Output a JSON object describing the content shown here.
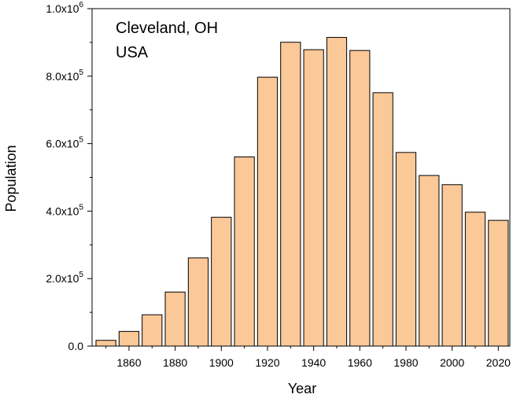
{
  "chart_data": {
    "type": "bar",
    "title": "",
    "annotation": [
      "Cleveland, OH",
      "USA"
    ],
    "xlabel": "Year",
    "ylabel": "Population",
    "categories": [
      1850,
      1860,
      1870,
      1880,
      1890,
      1900,
      1910,
      1920,
      1930,
      1940,
      1950,
      1960,
      1970,
      1980,
      1990,
      2000,
      2010,
      2020
    ],
    "values": [
      17034,
      43417,
      92829,
      160146,
      261353,
      381768,
      560663,
      796841,
      900429,
      878336,
      914808,
      876050,
      750903,
      573822,
      505616,
      478403,
      396815,
      372624
    ],
    "xlim": [
      1844,
      2025
    ],
    "ylim": [
      0,
      1000000
    ],
    "x_ticks": [
      {
        "value": 1860,
        "label": "1860"
      },
      {
        "value": 1880,
        "label": "1880"
      },
      {
        "value": 1900,
        "label": "1900"
      },
      {
        "value": 1920,
        "label": "1920"
      },
      {
        "value": 1940,
        "label": "1940"
      },
      {
        "value": 1960,
        "label": "1960"
      },
      {
        "value": 1980,
        "label": "1980"
      },
      {
        "value": 2000,
        "label": "2000"
      },
      {
        "value": 2020,
        "label": "2020"
      }
    ],
    "y_ticks": [
      {
        "value": 0,
        "mantissa": "0.0",
        "exp": ""
      },
      {
        "value": 200000,
        "mantissa": "2.0x10",
        "exp": "5"
      },
      {
        "value": 400000,
        "mantissa": "4.0x10",
        "exp": "5"
      },
      {
        "value": 600000,
        "mantissa": "6.0x10",
        "exp": "5"
      },
      {
        "value": 800000,
        "mantissa": "8.0x10",
        "exp": "5"
      },
      {
        "value": 1000000,
        "mantissa": "1.0x10",
        "exp": "6"
      }
    ],
    "bar_color": "#fbc898",
    "bar_edge_color": "#000000",
    "grid": false,
    "legend": "none"
  }
}
